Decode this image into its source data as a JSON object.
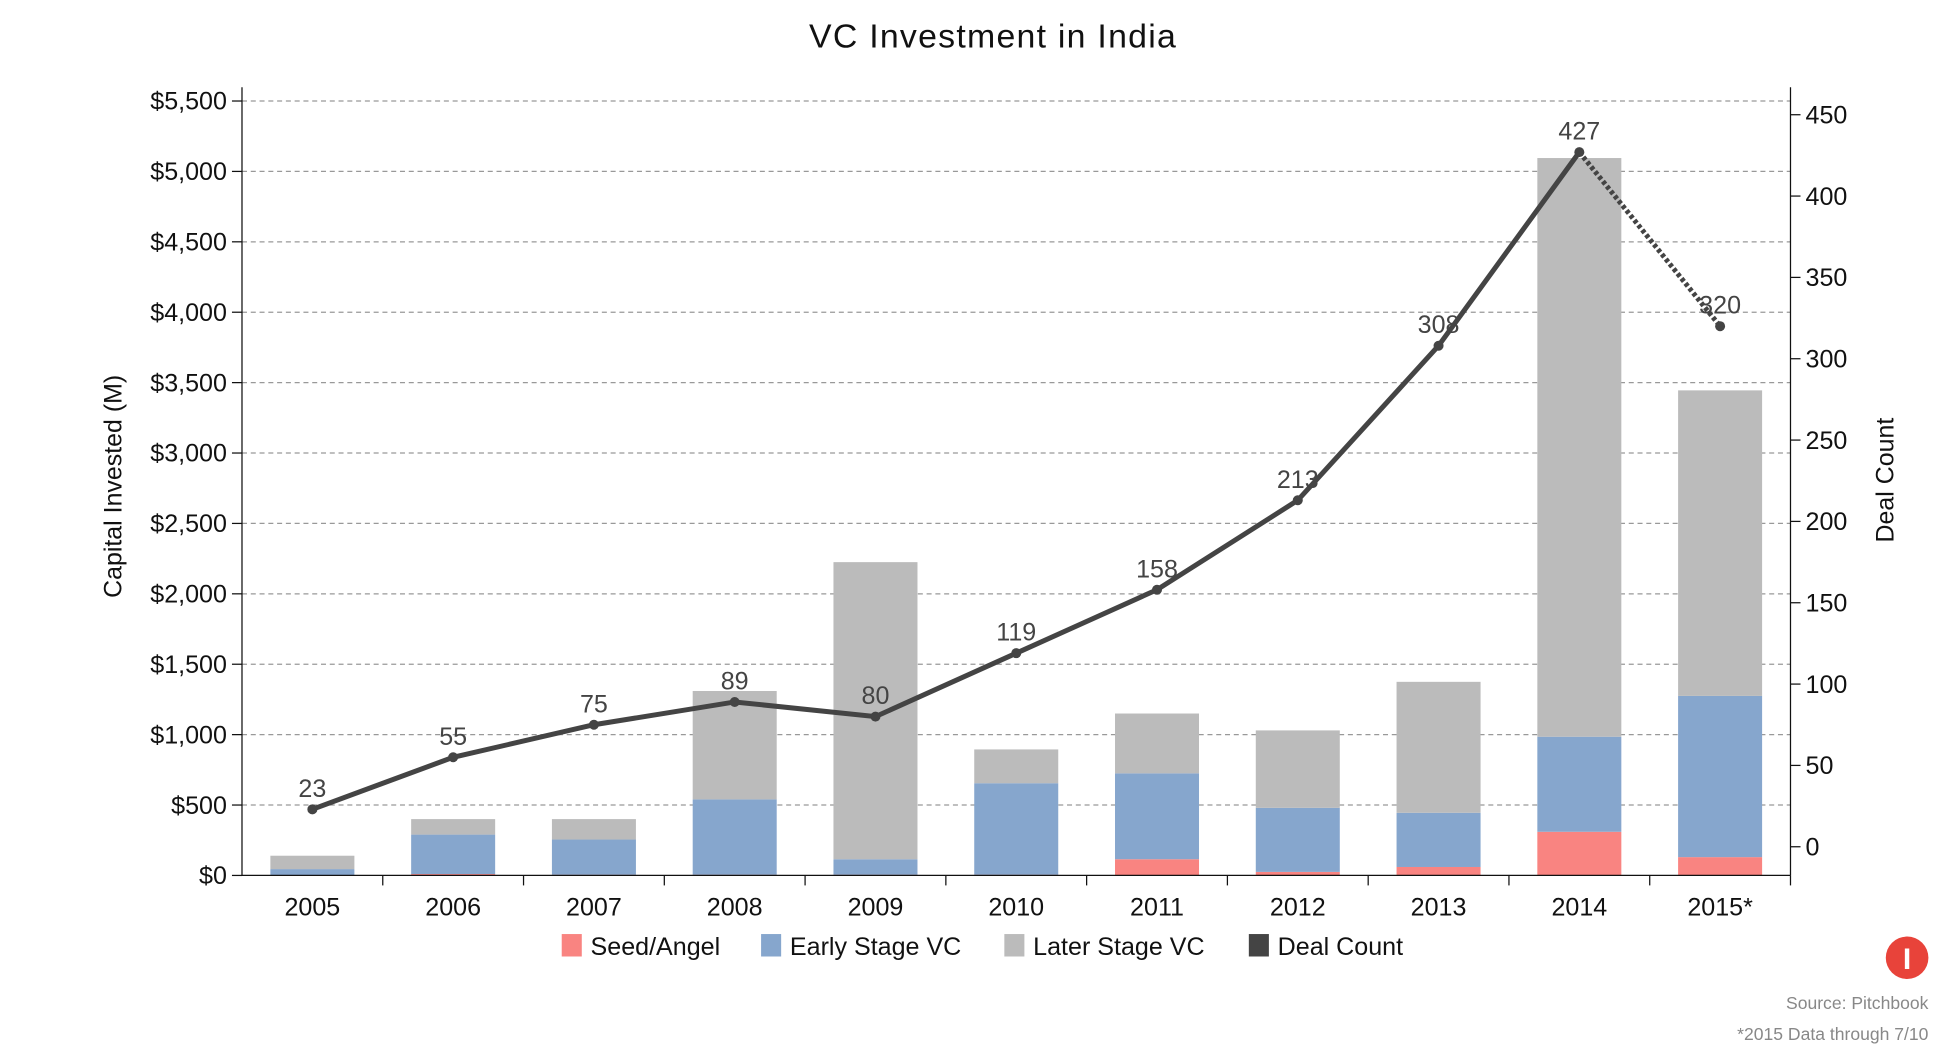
{
  "chart_data": {
    "type": "bar",
    "stacked": true,
    "title": "VC Investment in India",
    "ylabel": "Capital Invested (M)",
    "y2label": "Deal Count",
    "ylim": [
      0,
      5500
    ],
    "y2lim": [
      -18,
      460
    ],
    "yticks": [
      "$0",
      "$500",
      "$1,000",
      "$1,500",
      "$2,000",
      "$2,500",
      "$3,000",
      "$3,500",
      "$4,000",
      "$4,500",
      "$5,000",
      "$5,500"
    ],
    "y2ticks": [
      "0",
      "50",
      "100",
      "150",
      "200",
      "250",
      "300",
      "350",
      "400",
      "450"
    ],
    "grid": true,
    "legend_placement": "bottom",
    "categories": [
      "2005",
      "2006",
      "2007",
      "2008",
      "2009",
      "2010",
      "2011",
      "2012",
      "2013",
      "2014",
      "2015*"
    ],
    "series": [
      {
        "name": "Seed/Angel",
        "color": "#f98481",
        "values": [
          3,
          10,
          5,
          5,
          5,
          5,
          115,
          25,
          60,
          310,
          130
        ]
      },
      {
        "name": "Early Stage VC",
        "color": "#86a6cd",
        "values": [
          42,
          280,
          250,
          535,
          110,
          650,
          610,
          455,
          385,
          675,
          1145
        ]
      },
      {
        "name": "Later Stage VC",
        "color": "#bbbbbb",
        "values": [
          95,
          110,
          145,
          770,
          2110,
          240,
          425,
          550,
          930,
          4110,
          2170
        ]
      }
    ],
    "line_series": {
      "name": "Deal Count",
      "color": "#444444",
      "values": [
        23,
        55,
        75,
        89,
        80,
        119,
        158,
        213,
        308,
        427,
        320
      ],
      "dotted_last_segment": true
    },
    "data_labels": [
      "23",
      "55",
      "75",
      "89",
      "80",
      "119",
      "158",
      "213",
      "308",
      "427",
      "320"
    ]
  },
  "footer": {
    "source": "Source: Pitchbook",
    "note": "*2015 Data through 7/10",
    "logo_letter": "I",
    "logo_color": "#e8433a"
  }
}
